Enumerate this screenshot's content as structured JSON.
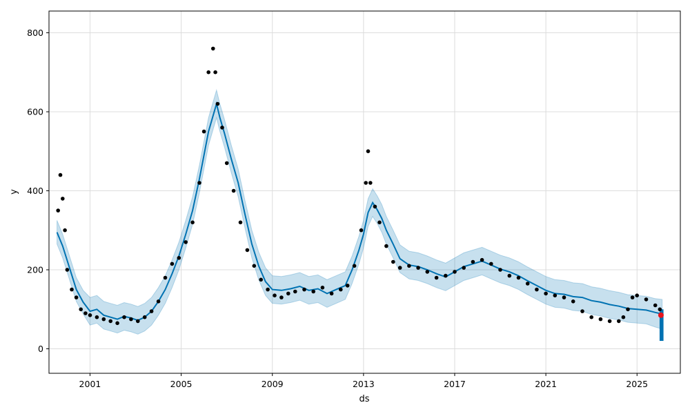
{
  "chart_data": {
    "type": "line",
    "title": "",
    "xlabel": "ds",
    "ylabel": "y",
    "xlim": [
      1999.2,
      2026.9
    ],
    "ylim": [
      -62,
      855
    ],
    "x_ticks": [
      {
        "value": 2001,
        "label": "2001"
      },
      {
        "value": 2005,
        "label": "2005"
      },
      {
        "value": 2009,
        "label": "2009"
      },
      {
        "value": 2013,
        "label": "2013"
      },
      {
        "value": 2017,
        "label": "2017"
      },
      {
        "value": 2021,
        "label": "2021"
      },
      {
        "value": 2025,
        "label": "2025"
      }
    ],
    "y_ticks": [
      {
        "value": 0,
        "label": "0"
      },
      {
        "value": 200,
        "label": "200"
      },
      {
        "value": 400,
        "label": "400"
      },
      {
        "value": 600,
        "label": "600"
      },
      {
        "value": 800,
        "label": "800"
      }
    ],
    "grid": true,
    "colors": {
      "forecast_line": "#0072b2",
      "interval_fill": "#0072b2",
      "observed": "#000000",
      "latest_point": "#e8141c"
    },
    "series": [
      {
        "kind": "forecast",
        "x": [
          1999.55,
          1999.8,
          2000.1,
          2000.4,
          2000.7,
          2001.0,
          2001.3,
          2001.6,
          2001.9,
          2002.2,
          2002.5,
          2002.8,
          2003.1,
          2003.4,
          2003.7,
          2004.0,
          2004.3,
          2004.6,
          2004.9,
          2005.2,
          2005.5,
          2005.8,
          2006.0,
          2006.2,
          2006.4,
          2006.55,
          2006.7,
          2006.9,
          2007.2,
          2007.5,
          2007.8,
          2008.1,
          2008.4,
          2008.7,
          2009.0,
          2009.4,
          2009.8,
          2010.2,
          2010.6,
          2011.0,
          2011.4,
          2011.8,
          2012.2,
          2012.5,
          2012.8,
          2013.0,
          2013.2,
          2013.4,
          2013.6,
          2013.8,
          2014.0,
          2014.3,
          2014.6,
          2015.0,
          2015.4,
          2015.8,
          2016.2,
          2016.6,
          2017.0,
          2017.4,
          2017.8,
          2018.2,
          2018.6,
          2019.0,
          2019.4,
          2019.8,
          2020.2,
          2020.6,
          2021.0,
          2021.4,
          2021.8,
          2022.2,
          2022.6,
          2023.0,
          2023.4,
          2023.8,
          2024.2,
          2024.6,
          2025.0,
          2025.4,
          2025.8,
          2026.1
        ],
        "yhat": [
          295,
          260,
          205,
          150,
          118,
          95,
          100,
          85,
          80,
          75,
          82,
          78,
          72,
          80,
          95,
          120,
          150,
          190,
          235,
          290,
          350,
          430,
          490,
          550,
          590,
          620,
          585,
          545,
          480,
          420,
          340,
          265,
          210,
          170,
          150,
          148,
          152,
          158,
          148,
          152,
          140,
          150,
          160,
          200,
          250,
          290,
          345,
          370,
          352,
          330,
          300,
          265,
          228,
          212,
          208,
          200,
          190,
          182,
          195,
          208,
          215,
          222,
          212,
          202,
          195,
          185,
          172,
          160,
          148,
          140,
          138,
          132,
          130,
          122,
          118,
          112,
          108,
          102,
          100,
          98,
          92,
          88
        ],
        "yhat_lower": [
          265,
          230,
          175,
          120,
          88,
          60,
          65,
          50,
          45,
          40,
          47,
          43,
          37,
          45,
          60,
          85,
          115,
          155,
          200,
          255,
          315,
          395,
          455,
          515,
          555,
          585,
          550,
          510,
          445,
          385,
          305,
          230,
          175,
          135,
          115,
          113,
          117,
          123,
          113,
          117,
          105,
          115,
          125,
          165,
          215,
          255,
          310,
          335,
          317,
          295,
          265,
          230,
          193,
          177,
          173,
          165,
          155,
          147,
          160,
          173,
          180,
          187,
          177,
          167,
          160,
          150,
          137,
          125,
          113,
          105,
          103,
          97,
          95,
          87,
          83,
          77,
          73,
          67,
          65,
          63,
          55,
          50
        ],
        "yhat_upper": [
          325,
          290,
          235,
          180,
          148,
          130,
          135,
          120,
          115,
          110,
          117,
          113,
          107,
          115,
          130,
          155,
          185,
          225,
          270,
          325,
          385,
          465,
          525,
          585,
          625,
          655,
          620,
          580,
          515,
          455,
          375,
          300,
          245,
          205,
          185,
          183,
          187,
          193,
          183,
          187,
          175,
          185,
          195,
          235,
          285,
          325,
          380,
          405,
          387,
          365,
          335,
          300,
          263,
          247,
          243,
          235,
          225,
          217,
          230,
          243,
          250,
          257,
          247,
          237,
          230,
          220,
          207,
          195,
          183,
          175,
          173,
          167,
          165,
          157,
          153,
          147,
          143,
          137,
          135,
          133,
          127,
          125
        ]
      },
      {
        "kind": "observed",
        "x": [
          1999.6,
          1999.7,
          1999.8,
          1999.9,
          2000.0,
          2000.2,
          2000.4,
          2000.6,
          2000.8,
          2001.0,
          2001.3,
          2001.6,
          2001.9,
          2002.2,
          2002.5,
          2002.8,
          2003.1,
          2003.4,
          2003.7,
          2004.0,
          2004.3,
          2004.6,
          2004.9,
          2005.2,
          2005.5,
          2005.8,
          2006.0,
          2006.2,
          2006.4,
          2006.5,
          2006.6,
          2006.8,
          2007.0,
          2007.3,
          2007.6,
          2007.9,
          2008.2,
          2008.5,
          2008.8,
          2009.1,
          2009.4,
          2009.7,
          2010.0,
          2010.4,
          2010.8,
          2011.2,
          2011.6,
          2012.0,
          2012.3,
          2012.6,
          2012.9,
          2013.1,
          2013.2,
          2013.3,
          2013.5,
          2013.7,
          2014.0,
          2014.3,
          2014.6,
          2015.0,
          2015.4,
          2015.8,
          2016.2,
          2016.6,
          2017.0,
          2017.4,
          2017.8,
          2018.2,
          2018.6,
          2019.0,
          2019.4,
          2019.8,
          2020.2,
          2020.6,
          2021.0,
          2021.4,
          2021.8,
          2022.2,
          2022.6,
          2023.0,
          2023.4,
          2023.8,
          2024.2,
          2024.4,
          2024.6,
          2024.8,
          2025.0,
          2025.4,
          2025.8,
          2026.0
        ],
        "y": [
          350,
          440,
          380,
          300,
          200,
          150,
          130,
          100,
          90,
          85,
          80,
          75,
          70,
          65,
          80,
          75,
          70,
          80,
          95,
          120,
          180,
          215,
          230,
          270,
          320,
          420,
          550,
          700,
          760,
          700,
          620,
          560,
          470,
          400,
          320,
          250,
          210,
          175,
          150,
          135,
          130,
          140,
          145,
          150,
          145,
          155,
          140,
          150,
          160,
          210,
          300,
          420,
          500,
          420,
          360,
          320,
          260,
          220,
          205,
          210,
          205,
          195,
          180,
          185,
          195,
          205,
          220,
          225,
          215,
          200,
          185,
          180,
          165,
          150,
          140,
          135,
          130,
          120,
          95,
          80,
          75,
          70,
          70,
          80,
          100,
          130,
          135,
          125,
          110,
          100
        ]
      },
      {
        "kind": "latest",
        "x": [
          2026.05
        ],
        "y": [
          85
        ]
      }
    ],
    "forecast_band": {
      "x_from": 2026.05,
      "x_to": 2026.1,
      "y_low": 20,
      "y_high": 100
    }
  }
}
